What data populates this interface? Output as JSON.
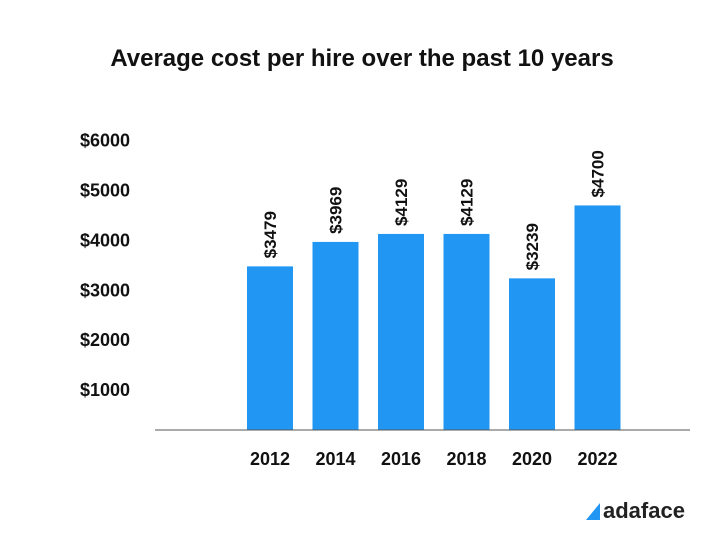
{
  "chart_data": {
    "type": "bar",
    "title": "Average cost per hire over the past 10 years",
    "xlabel": "",
    "ylabel": "",
    "categories": [
      "2012",
      "2014",
      "2016",
      "2018",
      "2020",
      "2022"
    ],
    "values": [
      3479,
      3969,
      4129,
      4129,
      3239,
      4700
    ],
    "data_labels": [
      "$3479",
      "$3969",
      "$4129",
      "$4129",
      "$3239",
      "$4700"
    ],
    "y_ticks": [
      1000,
      2000,
      3000,
      4000,
      5000,
      6000
    ],
    "y_tick_labels": [
      "$1000",
      "$2000",
      "$3000",
      "$4000",
      "$5000",
      "$6000"
    ],
    "ylim": [
      200,
      6100
    ],
    "grid": false,
    "legend": "none",
    "bar_color": "#2196f3"
  },
  "brand": {
    "name": "adaface",
    "mark_color": "#2196f3"
  }
}
